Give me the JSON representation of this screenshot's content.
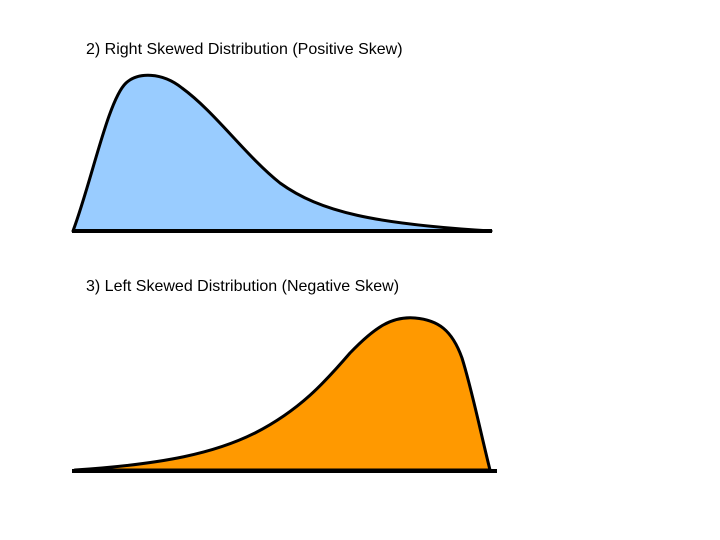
{
  "figures": [
    {
      "caption": "2) Right Skewed Distribution (Positive Skew)",
      "skew": "positive",
      "fill_color": "#99ccff"
    },
    {
      "caption": "3) Left Skewed Distribution (Negative Skew)",
      "skew": "negative",
      "fill_color": "#ff9900"
    }
  ],
  "colors": {
    "outline": "#000000",
    "background": "#ffffff"
  }
}
